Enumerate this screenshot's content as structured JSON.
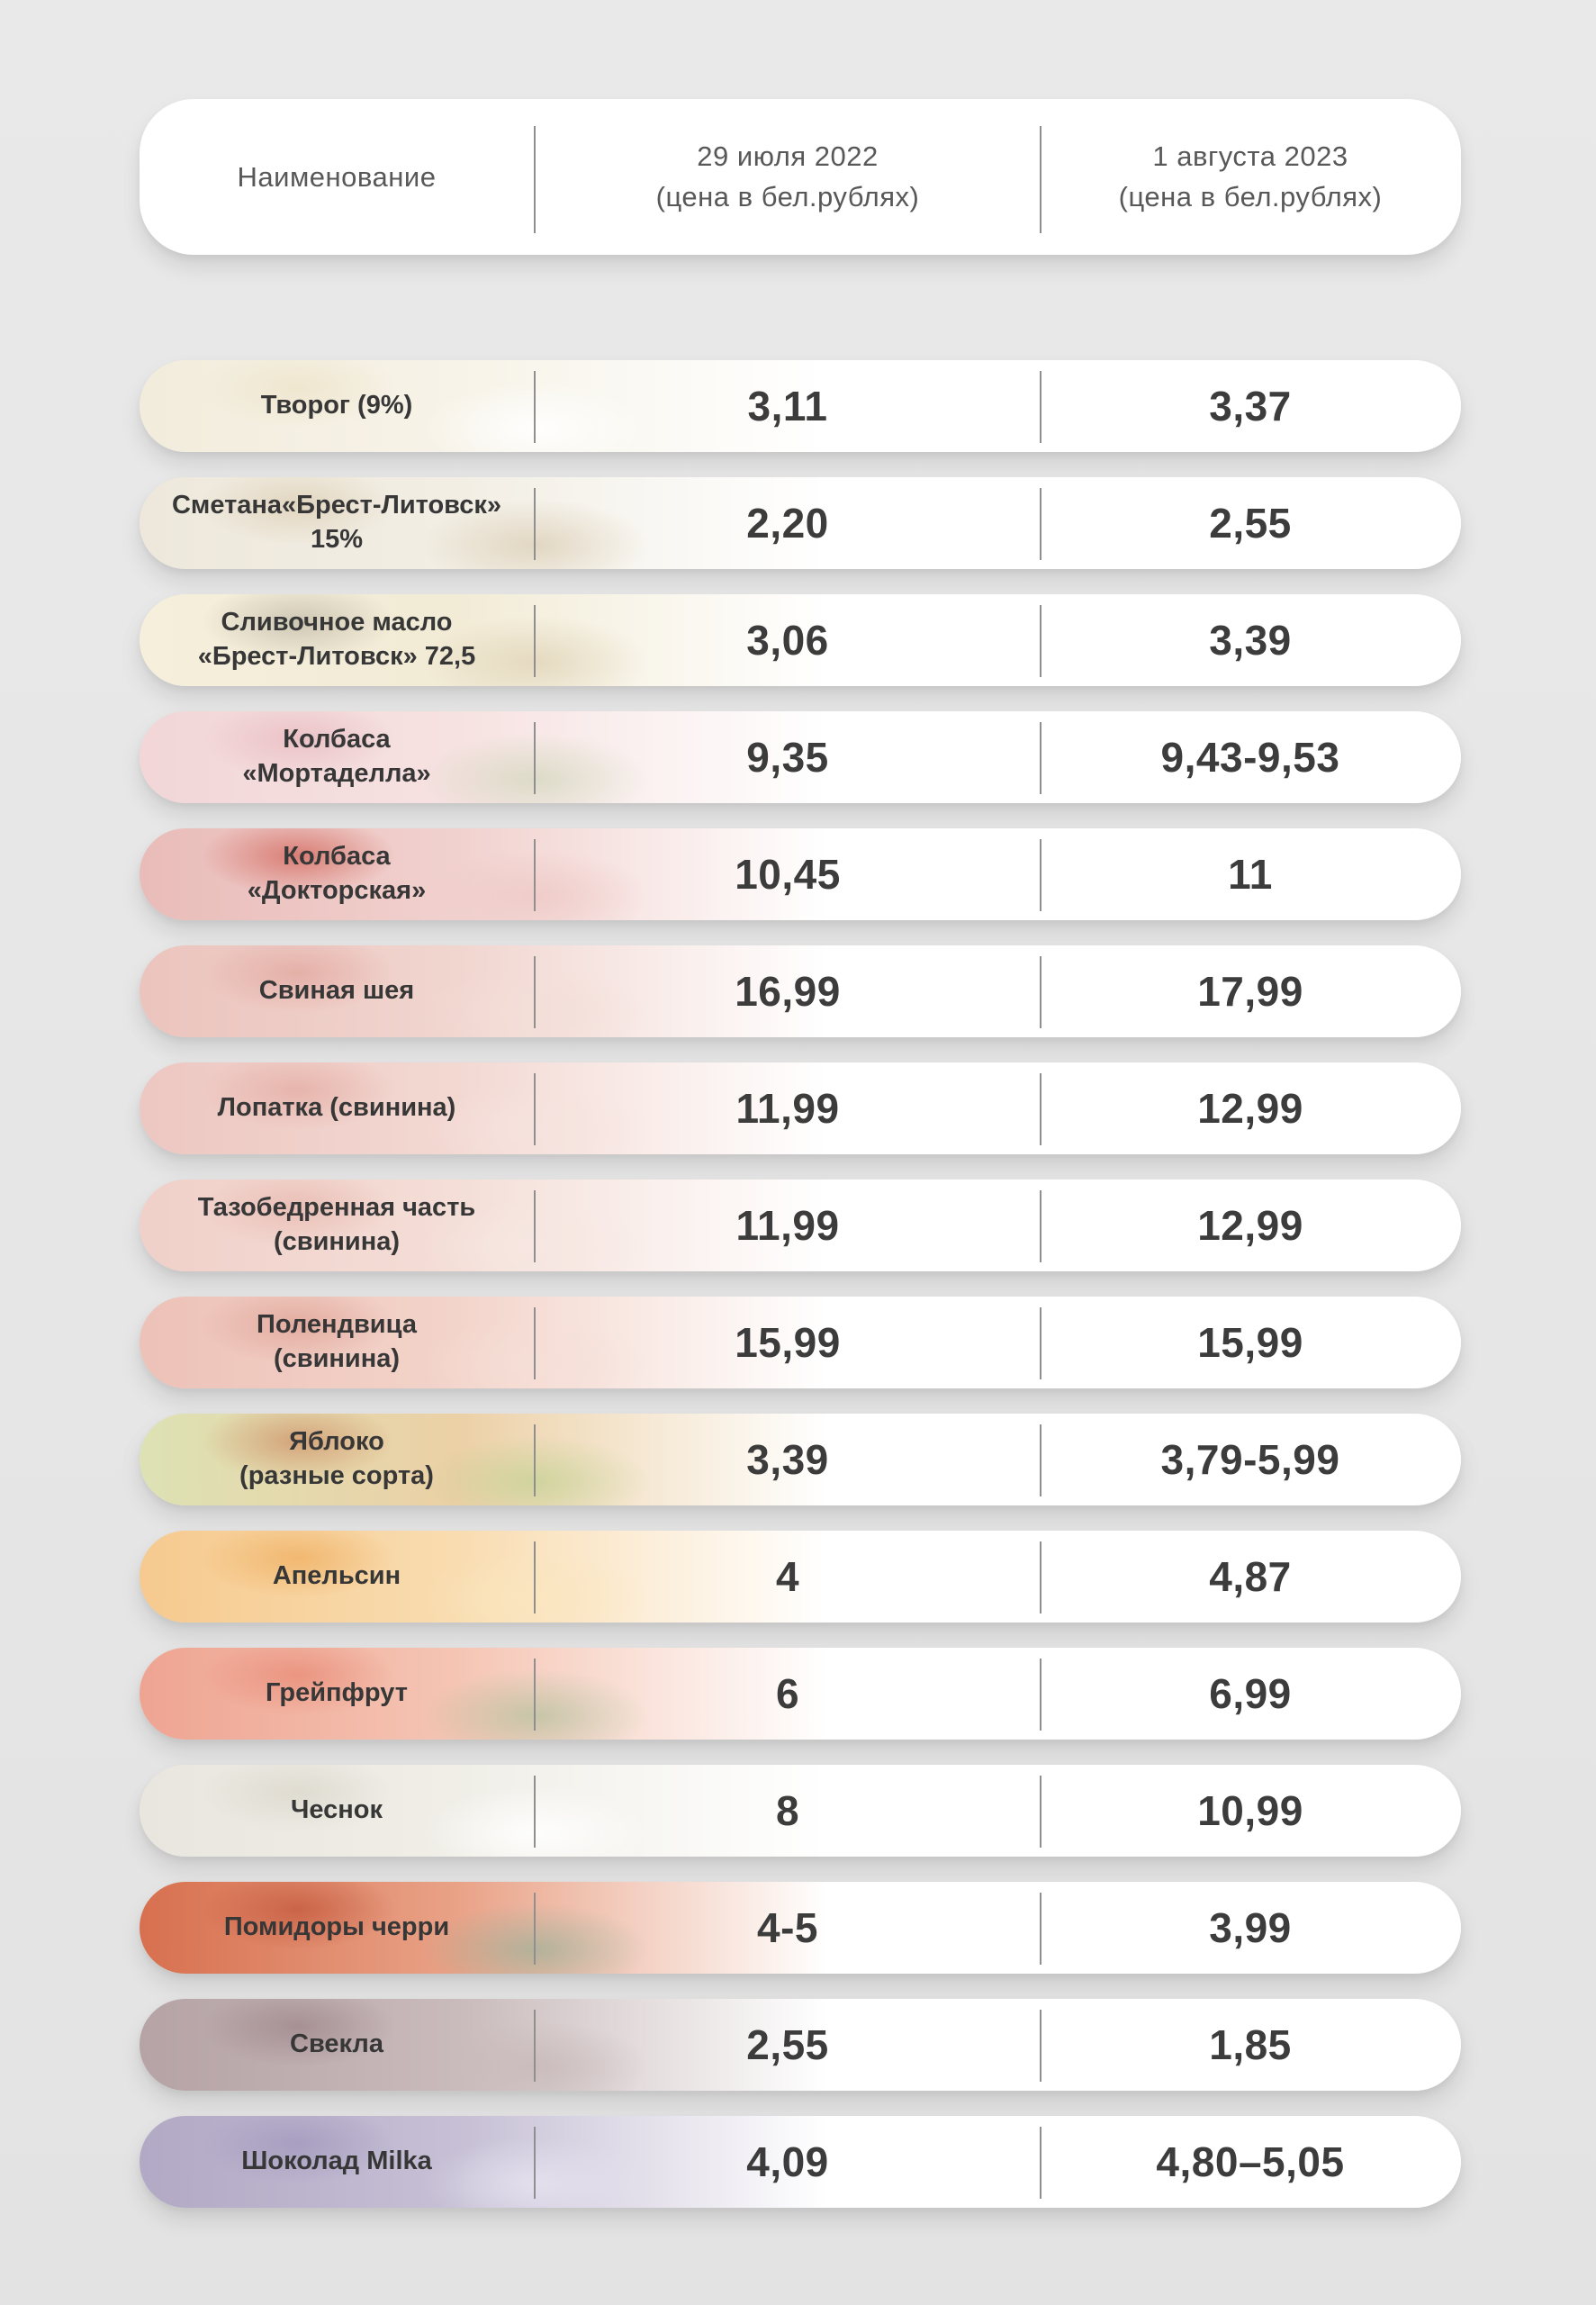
{
  "page": {
    "background": "#e7e7e7",
    "pill_color": "#ffffff",
    "divider_color": "#8f8f8f",
    "name_text_color": "#373737",
    "price_text_color": "#3c3c3c",
    "header_text_color": "#585858"
  },
  "header": {
    "name_label": "Наименование",
    "col1": {
      "date": "29 июля 2022",
      "unit": "(цена в бел.рублях)"
    },
    "col2": {
      "date": "1 августа 2023",
      "unit": "(цена в бел.рублях)"
    }
  },
  "rows": [
    {
      "name": "Творог (9%)",
      "price_2022": "3,11",
      "price_2023": "3,37",
      "image": "cottage-cheese",
      "colors": {
        "edge": "#f2ecdc",
        "mid": "#f7f3e8",
        "accent": "rgba(238,228,202,0.8)",
        "accent2": "rgba(255,255,255,0.9)"
      }
    },
    {
      "name": "Сметана«Брест-Литовск»\n15%",
      "price_2022": "2,20",
      "price_2023": "2,55",
      "image": "sour-cream",
      "colors": {
        "edge": "#eee8dc",
        "mid": "#f2eee4",
        "accent": "rgba(214,196,164,0.55)",
        "accent2": "rgba(197,173,134,0.4)"
      }
    },
    {
      "name": "Сливочное масло\n«Брест-Литовск» 72,5",
      "price_2022": "3,06",
      "price_2023": "3,39",
      "image": "butter",
      "colors": {
        "edge": "#f5efdc",
        "mid": "#f2ebd6",
        "accent": "rgba(137,128,112,0.35)",
        "accent2": "rgba(213,196,160,0.5)"
      }
    },
    {
      "name": "Колбаса\n«Мортаделла»",
      "price_2022": "9,35",
      "price_2023": "9,43-9,53",
      "image": "mortadella-sausage",
      "colors": {
        "edge": "#f2d6d8",
        "mid": "#f6e2e1",
        "accent": "rgba(231,183,189,0.7)",
        "accent2": "rgba(186,203,160,0.45)"
      }
    },
    {
      "name": "Колбаса\n«Докторская»",
      "price_2022": "10,45",
      "price_2023": "11",
      "image": "doctorskaya-sausage",
      "colors": {
        "edge": "#e9bcb9",
        "mid": "#f1d1ce",
        "accent": "rgba(206,86,74,0.65)",
        "accent2": "rgba(238,200,197,0.8)"
      }
    },
    {
      "name": "Свиная шея",
      "price_2022": "16,99",
      "price_2023": "17,99",
      "image": "pork-neck",
      "colors": {
        "edge": "#ebc4bd",
        "mid": "#f1d5cf",
        "accent": "rgba(222,157,148,0.6)",
        "accent2": "rgba(244,222,216,0.8)"
      }
    },
    {
      "name": "Лопатка (свинина)",
      "price_2022": "11,99",
      "price_2023": "12,99",
      "image": "pork-shoulder",
      "colors": {
        "edge": "#edc7c1",
        "mid": "#f3d8d2",
        "accent": "rgba(224,163,153,0.6)",
        "accent2": "rgba(246,227,222,0.8)"
      }
    },
    {
      "name": "Тазобедренная часть\n(свинина)",
      "price_2022": "11,99",
      "price_2023": "12,99",
      "image": "pork-hip",
      "colors": {
        "edge": "#f0d0c9",
        "mid": "#f4ded7",
        "accent": "rgba(228,175,165,0.6)",
        "accent2": "rgba(247,231,226,0.8)"
      }
    },
    {
      "name": "Полендвица\n(свинина)",
      "price_2022": "15,99",
      "price_2023": "15,99",
      "image": "pork-loin",
      "colors": {
        "edge": "#edc2b8",
        "mid": "#f3d4ca",
        "accent": "rgba(219,152,138,0.6)",
        "accent2": "rgba(245,223,215,0.8)"
      }
    },
    {
      "name": "Яблоко\n(разные сорта)",
      "price_2022": "3,39",
      "price_2023": "3,79-5,99",
      "image": "apples",
      "colors": {
        "edge": "#dde2b4",
        "mid": "#ecd0a6",
        "accent": "rgba(203,135,94,0.65)",
        "accent2": "rgba(186,208,140,0.6)"
      }
    },
    {
      "name": "Апельсин",
      "price_2022": "4",
      "price_2023": "4,87",
      "image": "oranges",
      "colors": {
        "edge": "#f6ca8f",
        "mid": "#f9dcb0",
        "accent": "rgba(238,172,92,0.7)",
        "accent2": "rgba(250,230,190,0.8)"
      }
    },
    {
      "name": "Грейпфрут",
      "price_2022": "6",
      "price_2023": "6,99",
      "image": "grapefruit",
      "colors": {
        "edge": "#efa492",
        "mid": "#f5c5b4",
        "accent": "rgba(230,132,110,0.65)",
        "accent2": "rgba(150,185,140,0.5)"
      }
    },
    {
      "name": "Чеснок",
      "price_2022": "8",
      "price_2023": "10,99",
      "image": "garlic",
      "colors": {
        "edge": "#e8e6de",
        "mid": "#f0eee7",
        "accent": "rgba(214,210,198,0.6)",
        "accent2": "rgba(255,255,255,0.9)"
      }
    },
    {
      "name": "Помидоры черри",
      "price_2022": "4-5",
      "price_2023": "3,99",
      "image": "cherry-tomatoes",
      "colors": {
        "edge": "#d7704f",
        "mid": "#e9a287",
        "accent": "rgba(193,84,57,0.7)",
        "accent2": "rgba(140,175,150,0.6)"
      }
    },
    {
      "name": "Свекла",
      "price_2022": "2,55",
      "price_2023": "1,85",
      "image": "beets",
      "colors": {
        "edge": "#b5a3a5",
        "mid": "#c9babb",
        "accent": "rgba(150,124,128,0.6)",
        "accent2": "rgba(200,185,186,0.8)"
      }
    },
    {
      "name": "Шоколад Milka",
      "price_2022": "4,09",
      "price_2023": "4,80–5,05",
      "image": "milka-chocolate",
      "colors": {
        "edge": "#b2a9c5",
        "mid": "#c6bfd5",
        "accent": "rgba(155,144,185,0.6)",
        "accent2": "rgba(230,227,240,0.85)"
      }
    }
  ],
  "chart_data": {
    "type": "table",
    "title": "",
    "columns": [
      "Наименование",
      "29 июля 2022 (цена в бел.рублях)",
      "1 августа 2023 (цена в бел.рублях)"
    ],
    "categories": [
      "Творог (9%)",
      "Сметана«Брест-Литовск» 15%",
      "Сливочное масло «Брест-Литовск» 72,5",
      "Колбаса «Мортаделла»",
      "Колбаса «Докторская»",
      "Свиная шея",
      "Лопатка (свинина)",
      "Тазобедренная часть (свинина)",
      "Полендвица (свинина)",
      "Яблоко (разные сорта)",
      "Апельсин",
      "Грейпфрут",
      "Чеснок",
      "Помидоры черри",
      "Свекла",
      "Шоколад Milka"
    ],
    "series": [
      {
        "name": "29 июля 2022 (цена в бел.рублях)",
        "values": [
          "3,11",
          "2,20",
          "3,06",
          "9,35",
          "10,45",
          "16,99",
          "11,99",
          "11,99",
          "15,99",
          "3,39",
          "4",
          "6",
          "8",
          "4-5",
          "2,55",
          "4,09"
        ]
      },
      {
        "name": "1 августа 2023 (цена в бел.рублях)",
        "values": [
          "3,37",
          "2,55",
          "3,39",
          "9,43-9,53",
          "11",
          "17,99",
          "12,99",
          "12,99",
          "15,99",
          "3,79-5,99",
          "4,87",
          "6,99",
          "10,99",
          "3,99",
          "1,85",
          "4,80–5,05"
        ]
      }
    ]
  }
}
